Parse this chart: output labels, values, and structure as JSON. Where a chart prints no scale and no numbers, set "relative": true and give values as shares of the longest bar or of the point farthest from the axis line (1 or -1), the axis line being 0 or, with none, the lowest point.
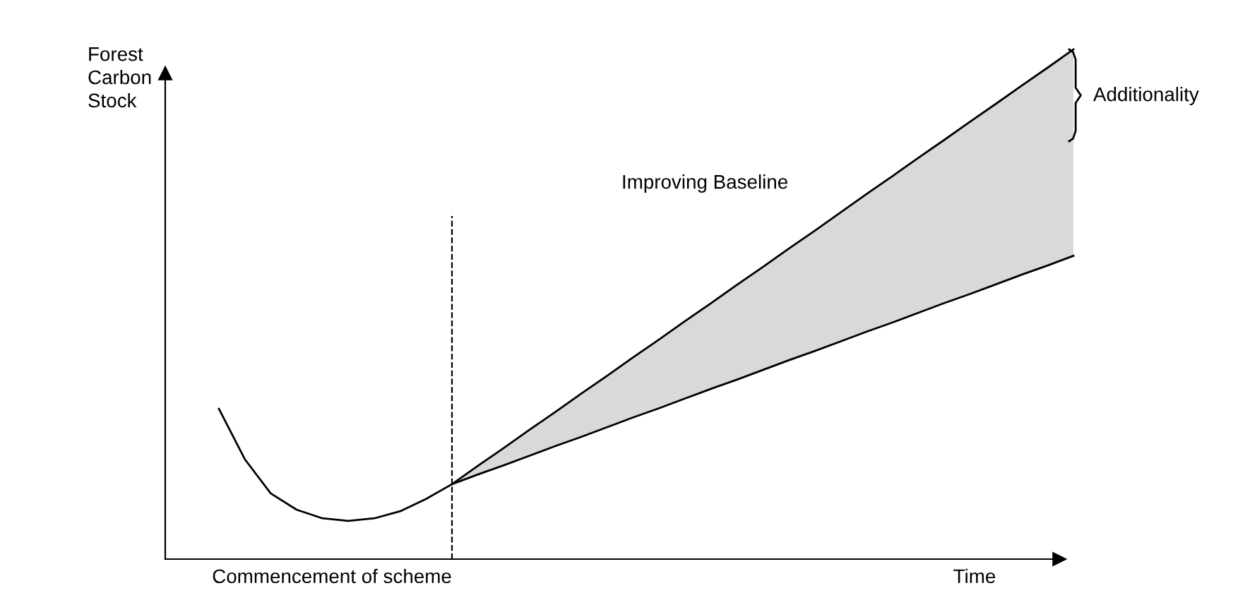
{
  "chart_data": {
    "type": "line",
    "relative": true,
    "xlabel": "Time",
    "ylabel": "Forest Carbon Stock",
    "categories": [
      null,
      null,
      null,
      null,
      null,
      null,
      null,
      null,
      null,
      null,
      null,
      null,
      null,
      null,
      null,
      null,
      null,
      null,
      null,
      null,
      null,
      null,
      null,
      null,
      null,
      null,
      null,
      null,
      null,
      null,
      null,
      null,
      null,
      null
    ],
    "series": [
      {
        "color": "#000000",
        "values": [
          0.295,
          0.196,
          0.129,
          0.097,
          0.08,
          0.075,
          0.08,
          0.094,
          0.118,
          0.147,
          0.166,
          0.184,
          0.203,
          0.222,
          0.24,
          0.259,
          0.278,
          0.296,
          0.315,
          0.334,
          0.352,
          0.371,
          0.39,
          0.408,
          0.427,
          0.446,
          0.464,
          0.483,
          0.502,
          0.52,
          0.539,
          0.558,
          0.576,
          0.595
        ]
      },
      {
        "color": "#000000",
        "values": [
          null,
          null,
          null,
          null,
          null,
          null,
          null,
          null,
          null,
          0.147,
          0.183,
          0.218,
          0.254,
          0.289,
          0.325,
          0.36,
          0.396,
          0.431,
          0.467,
          0.502,
          0.538,
          0.573,
          0.609,
          0.644,
          0.68,
          0.716,
          0.751,
          0.787,
          0.822,
          0.858,
          0.893,
          0.929,
          0.964,
          1.0
        ],
        "lower": [
          null,
          null,
          null,
          null,
          null,
          null,
          null,
          null,
          null,
          0.147,
          0.166,
          0.184,
          0.203,
          0.222,
          0.24,
          0.259,
          0.278,
          0.296,
          0.315,
          0.334,
          0.352,
          0.371,
          0.39,
          0.408,
          0.427,
          0.446,
          0.464,
          0.483,
          0.502,
          0.52,
          0.539,
          0.558,
          0.576,
          0.595
        ],
        "upper": [
          null,
          null,
          null,
          null,
          null,
          null,
          null,
          null,
          null,
          0.147,
          0.183,
          0.218,
          0.254,
          0.289,
          0.325,
          0.36,
          0.396,
          0.431,
          0.467,
          0.502,
          0.538,
          0.573,
          0.609,
          0.644,
          0.68,
          0.716,
          0.751,
          0.787,
          0.822,
          0.858,
          0.893,
          0.929,
          0.964,
          1.0
        ]
      }
    ],
    "annotations": [
      "Improving Baseline",
      "Additionality",
      "Commencement of scheme"
    ],
    "line_style": "solid",
    "marker": "none",
    "legend": false
  }
}
